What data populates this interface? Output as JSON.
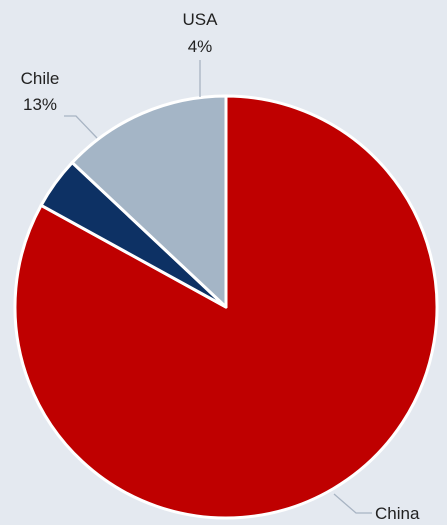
{
  "chart_data": {
    "type": "pie",
    "title": "",
    "slices": [
      {
        "label": "China",
        "value": 83,
        "value_label": "83%",
        "color": "#bf0000"
      },
      {
        "label": "USA",
        "value": 4,
        "value_label": "4%",
        "color": "#0d3164"
      },
      {
        "label": "Chile",
        "value": 13,
        "value_label": "13%",
        "color": "#a4b5c6"
      }
    ],
    "legend": "none",
    "start_angle": "12 o'clock",
    "direction": "clockwise"
  }
}
